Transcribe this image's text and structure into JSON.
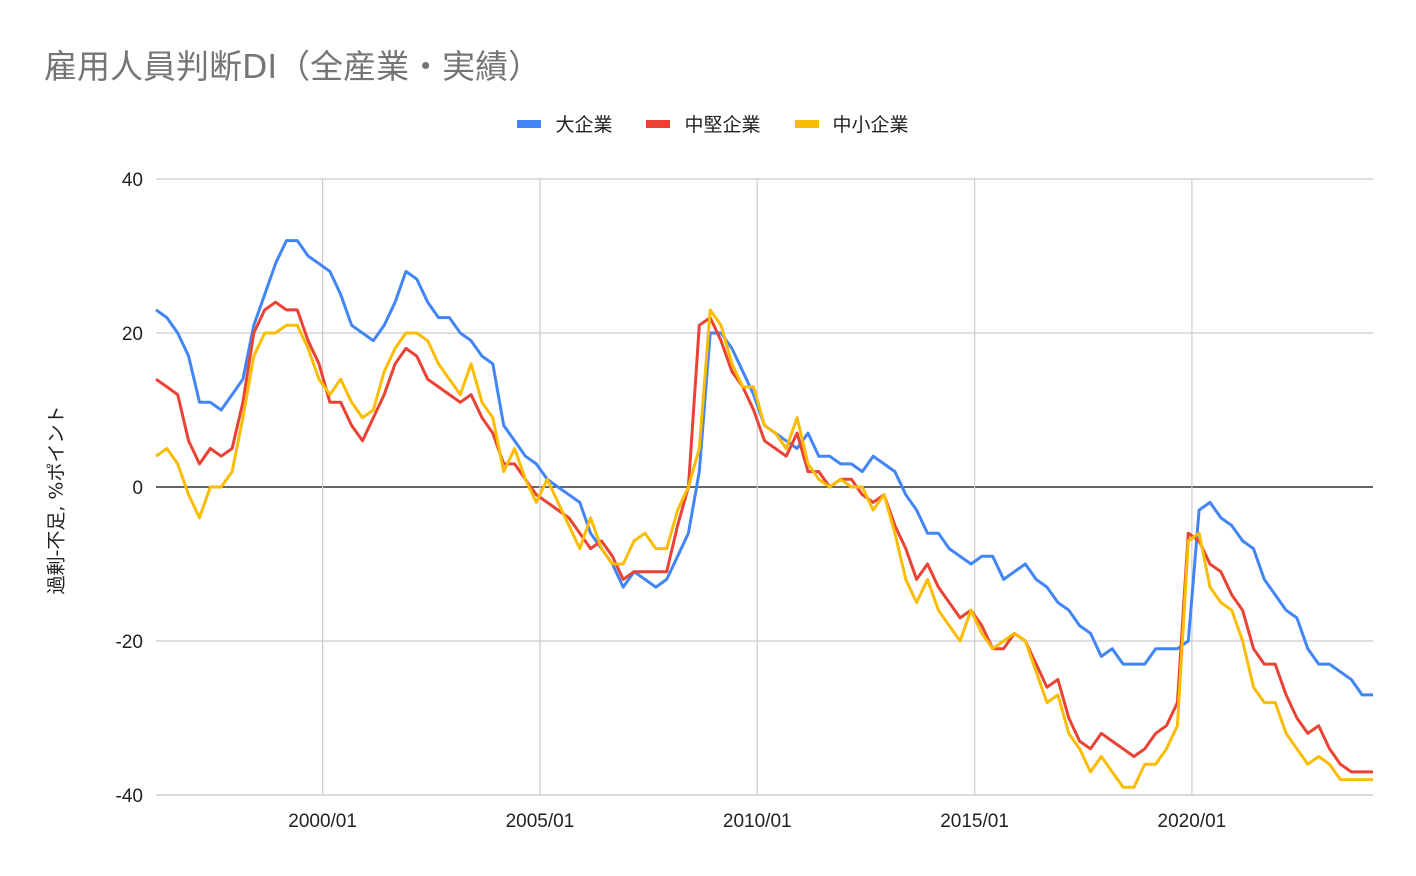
{
  "chart_data": {
    "type": "line",
    "title": "雇用人員判断DI（全産業・実績）",
    "xlabel": "",
    "ylabel": "過剰-不足, %ポイント",
    "ylim": [
      -40,
      40
    ],
    "yticks": [
      40,
      20,
      0,
      -20,
      -40
    ],
    "xtick_labels": [
      "2000/01",
      "2005/01",
      "2010/01",
      "2015/01",
      "2020/01"
    ],
    "grid": true,
    "legend_position": "top",
    "x_start": "1996/03",
    "x_end": "2024/03",
    "x_step": "quarterly",
    "series": [
      {
        "name": "大企業",
        "color": "#4285F4",
        "values": [
          23,
          22,
          20,
          17,
          11,
          11,
          10,
          12,
          14,
          21,
          25,
          29,
          32,
          32,
          30,
          29,
          28,
          25,
          21,
          20,
          19,
          21,
          24,
          28,
          27,
          24,
          22,
          22,
          20,
          19,
          17,
          16,
          8,
          6,
          4,
          3,
          1,
          0,
          -1,
          -2,
          -6,
          -8,
          -10,
          -13,
          -11,
          -12,
          -13,
          -12,
          -9,
          -6,
          2,
          20,
          20,
          18,
          15,
          12,
          8,
          7,
          6,
          5,
          7,
          4,
          4,
          3,
          3,
          2,
          4,
          3,
          2,
          -1,
          -3,
          -6,
          -6,
          -8,
          -9,
          -10,
          -9,
          -9,
          -12,
          -11,
          -10,
          -12,
          -13,
          -15,
          -16,
          -18,
          -19,
          -22,
          -21,
          -23,
          -23,
          -23,
          -21,
          -21,
          -21,
          -20,
          -3,
          -2,
          -4,
          -5,
          -7,
          -8,
          -12,
          -14,
          -16,
          -17,
          -21,
          -23,
          -23,
          -24,
          -25,
          -27,
          -27
        ]
      },
      {
        "name": "中堅企業",
        "color": "#EA4335",
        "values": [
          14,
          13,
          12,
          6,
          3,
          5,
          4,
          5,
          11,
          20,
          23,
          24,
          23,
          23,
          19,
          16,
          11,
          11,
          8,
          6,
          9,
          12,
          16,
          18,
          17,
          14,
          13,
          12,
          11,
          12,
          9,
          7,
          3,
          3,
          1,
          -1,
          -2,
          -3,
          -4,
          -6,
          -8,
          -7,
          -9,
          -12,
          -11,
          -11,
          -11,
          -11,
          -5,
          0,
          21,
          22,
          19,
          15,
          13,
          10,
          6,
          5,
          4,
          7,
          2,
          2,
          0,
          1,
          1,
          -1,
          -2,
          -1,
          -5,
          -8,
          -12,
          -10,
          -13,
          -15,
          -17,
          -16,
          -18,
          -21,
          -21,
          -19,
          -20,
          -23,
          -26,
          -25,
          -30,
          -33,
          -34,
          -32,
          -33,
          -34,
          -35,
          -34,
          -32,
          -31,
          -28,
          -6,
          -7,
          -10,
          -11,
          -14,
          -16,
          -21,
          -23,
          -23,
          -27,
          -30,
          -32,
          -31,
          -34,
          -36,
          -37,
          -37,
          -37
        ]
      },
      {
        "name": "中小企業",
        "color": "#FBBC04",
        "values": [
          4,
          5,
          3,
          -1,
          -4,
          0,
          0,
          2,
          9,
          17,
          20,
          20,
          21,
          21,
          18,
          14,
          12,
          14,
          11,
          9,
          10,
          15,
          18,
          20,
          20,
          19,
          16,
          14,
          12,
          16,
          11,
          9,
          2,
          5,
          1,
          -2,
          1,
          -2,
          -5,
          -8,
          -4,
          -8,
          -10,
          -10,
          -7,
          -6,
          -8,
          -8,
          -3,
          0,
          5,
          23,
          21,
          16,
          13,
          13,
          8,
          7,
          5,
          9,
          3,
          1,
          0,
          1,
          0,
          0,
          -3,
          -1,
          -6,
          -12,
          -15,
          -12,
          -16,
          -18,
          -20,
          -16,
          -19,
          -21,
          -20,
          -19,
          -20,
          -24,
          -28,
          -27,
          -32,
          -34,
          -37,
          -35,
          -37,
          -39,
          -39,
          -36,
          -36,
          -34,
          -31,
          -7,
          -6,
          -13,
          -15,
          -16,
          -20,
          -26,
          -28,
          -28,
          -32,
          -34,
          -36,
          -35,
          -36,
          -38,
          -38,
          -38,
          -38
        ]
      }
    ]
  },
  "header": {
    "title": "雇用人員判断DI（全産業・実績）"
  },
  "legend": [
    {
      "label": "大企業",
      "color": "#4285F4"
    },
    {
      "label": "中堅企業",
      "color": "#EA4335"
    },
    {
      "label": "中小企業",
      "color": "#FBBC04"
    }
  ],
  "axis": {
    "ylabel": "過剰-不足, %ポイント",
    "yticks": [
      "40",
      "20",
      "0",
      "-20",
      "-40"
    ],
    "xticks": [
      "2000/01",
      "2005/01",
      "2010/01",
      "2015/01",
      "2020/01"
    ]
  }
}
